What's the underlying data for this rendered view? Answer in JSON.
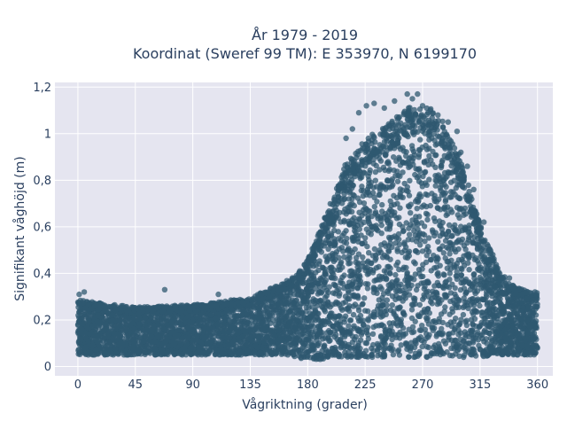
{
  "chart_data": {
    "type": "scatter",
    "title_lines": [
      "År 1979 - 2019",
      "Koordinat (Sweref 99 TM): E 353970, N 6199170"
    ],
    "xlabel": "Vågriktning (grader)",
    "ylabel": "Signifikant våghöjd (m)",
    "xlim": [
      -18,
      372
    ],
    "ylim": [
      -0.04,
      1.22
    ],
    "x_ticks": [
      0,
      45,
      90,
      135,
      180,
      225,
      270,
      315,
      360
    ],
    "x_tick_labels": [
      "0",
      "45",
      "90",
      "135",
      "180",
      "225",
      "270",
      "315",
      "360"
    ],
    "y_ticks": [
      0,
      0.2,
      0.4,
      0.6,
      0.8,
      1,
      1.2
    ],
    "y_tick_labels": [
      "0",
      "0,2",
      "0,4",
      "0,6",
      "0,8",
      "1",
      "1,2"
    ],
    "grid": true,
    "marker_color": "#2f5870",
    "plot_background": "#e5e5f0",
    "envelope": {
      "x": [
        0,
        45,
        90,
        135,
        155,
        170,
        180,
        190,
        200,
        210,
        225,
        240,
        255,
        270,
        285,
        300,
        315,
        330,
        345,
        360
      ],
      "lower": [
        0.05,
        0.05,
        0.05,
        0.05,
        0.05,
        0.04,
        0.03,
        0.03,
        0.04,
        0.04,
        0.04,
        0.04,
        0.04,
        0.04,
        0.04,
        0.04,
        0.04,
        0.05,
        0.05,
        0.05
      ],
      "upper": [
        0.28,
        0.25,
        0.26,
        0.29,
        0.34,
        0.38,
        0.45,
        0.58,
        0.72,
        0.86,
        0.96,
        1.02,
        1.08,
        1.12,
        1.04,
        0.88,
        0.6,
        0.4,
        0.33,
        0.31
      ]
    },
    "outliers": [
      {
        "x": 1,
        "y": 0.31
      },
      {
        "x": 5,
        "y": 0.32
      },
      {
        "x": 68,
        "y": 0.33
      },
      {
        "x": 110,
        "y": 0.31
      },
      {
        "x": 210,
        "y": 0.98
      },
      {
        "x": 215,
        "y": 1.02
      },
      {
        "x": 220,
        "y": 1.09
      },
      {
        "x": 226,
        "y": 1.12
      },
      {
        "x": 232,
        "y": 1.13
      },
      {
        "x": 240,
        "y": 1.11
      },
      {
        "x": 248,
        "y": 1.14
      },
      {
        "x": 258,
        "y": 1.17
      },
      {
        "x": 262,
        "y": 1.15
      },
      {
        "x": 266,
        "y": 1.17
      },
      {
        "x": 270,
        "y": 1.12
      },
      {
        "x": 276,
        "y": 1.1
      },
      {
        "x": 282,
        "y": 1.08
      },
      {
        "x": 290,
        "y": 1.05
      },
      {
        "x": 297,
        "y": 1.01
      },
      {
        "x": 300,
        "y": 0.92
      },
      {
        "x": 305,
        "y": 0.86
      },
      {
        "x": 310,
        "y": 0.76
      },
      {
        "x": 318,
        "y": 0.62
      },
      {
        "x": 325,
        "y": 0.48
      },
      {
        "x": 338,
        "y": 0.38
      },
      {
        "x": 358,
        "y": 0.32
      }
    ]
  }
}
